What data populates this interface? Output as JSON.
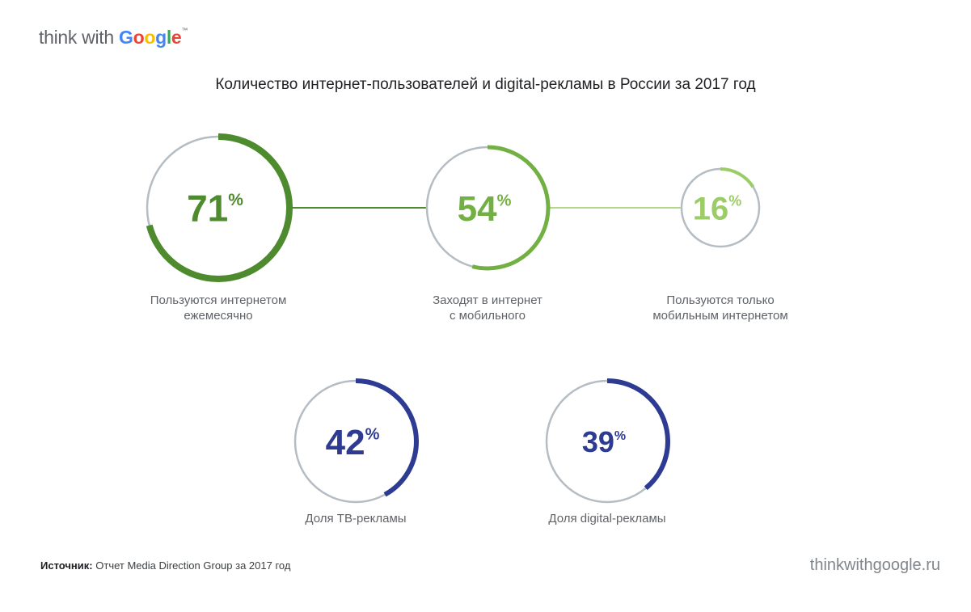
{
  "header": {
    "logo_think": "think with ",
    "logo_g": [
      "G",
      "o",
      "o",
      "g",
      "l",
      "e"
    ],
    "logo_tm": "™"
  },
  "chart_data": {
    "type": "donut",
    "title": "Количество интернет-пользователей и digital-рекламы в России за 2017 год",
    "items": [
      {
        "value": 71,
        "unit": "%",
        "label_line1": "Пользуются интернетом",
        "label_line2": "ежемесячно",
        "color": "#4e8a2e"
      },
      {
        "value": 54,
        "unit": "%",
        "label_line1": "Заходят в интернет",
        "label_line2": "с мобильного",
        "color": "#72b043"
      },
      {
        "value": 16,
        "unit": "%",
        "label_line1": "Пользуются только",
        "label_line2": "мобильным интернетом",
        "color": "#9ccc65"
      },
      {
        "value": 42,
        "unit": "%",
        "label_line1": "Доля ТВ-рекламы",
        "label_line2": "",
        "color": "#2e3b93"
      },
      {
        "value": 39,
        "unit": "%",
        "label_line1": "Доля digital-рекламы",
        "label_line2": "",
        "color": "#2e3b93"
      }
    ],
    "track_color": "#b4bcc4"
  },
  "footer": {
    "source_label": "Источник:",
    "source_text": "Отчет Media Direction Group за 2017 год",
    "site": "thinkwithgoogle.ru"
  }
}
